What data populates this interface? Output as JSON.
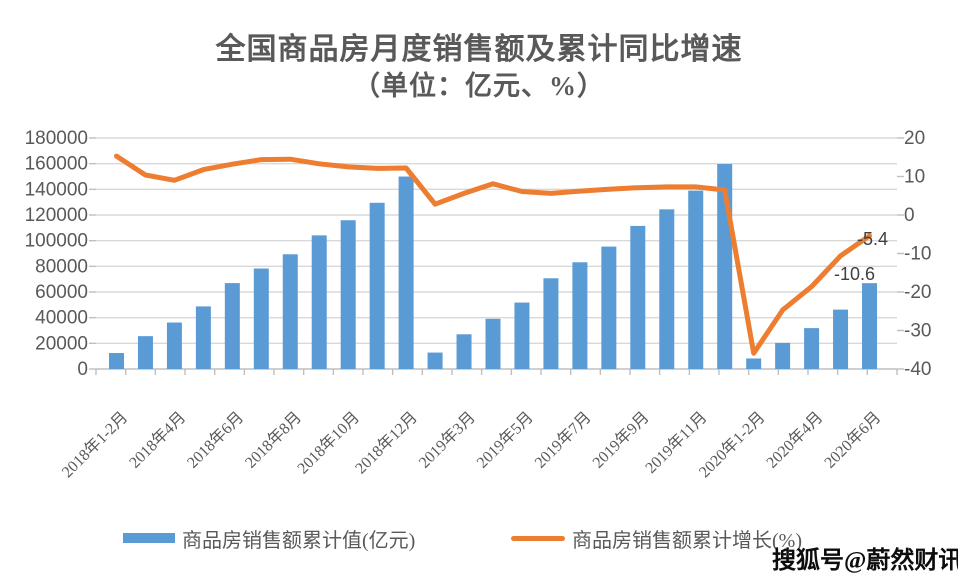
{
  "title": {
    "line1": "全国商品房月度销售额及累计同比增速",
    "line2": "（单位：亿元、%）"
  },
  "watermark": "搜狐号@蔚然财讯",
  "colors": {
    "bar": "#5B9BD5",
    "line": "#ED7D31",
    "grid": "#D9D9D9",
    "axis": "#BFBFBF",
    "axis_text": "#595959",
    "data_label_text": "#404040",
    "title_text": "#595959"
  },
  "legend": {
    "position": "bottom",
    "items": [
      {
        "label": "商品房销售额累计值(亿元)",
        "marker": "bar-swatch"
      },
      {
        "label": "商品房销售额累计增长(%)",
        "marker": "line-swatch"
      }
    ]
  },
  "chart_data": {
    "type": "combo",
    "title": "全国商品房月度销售额及累计同比增速（单位：亿元、%）",
    "grid": true,
    "legend_position": "bottom",
    "categories": [
      "2018年1-2月",
      "2018年3月",
      "2018年4月",
      "2018年5月",
      "2018年6月",
      "2018年7月",
      "2018年8月",
      "2018年9月",
      "2018年10月",
      "2018年11月",
      "2018年12月",
      "2019年1-2月",
      "2019年3月",
      "2019年4月",
      "2019年5月",
      "2019年6月",
      "2019年7月",
      "2019年8月",
      "2019年9月",
      "2019年10月",
      "2019年11月",
      "2019年12月",
      "2020年1-2月",
      "2020年3月",
      "2020年4月",
      "2020年5月",
      "2020年6月"
    ],
    "x_tick_labels": [
      "2018年1-2月",
      "2018年4月",
      "2018年6月",
      "2018年8月",
      "2018年10月",
      "2018年12月",
      "2019年3月",
      "2019年5月",
      "2019年7月",
      "2019年9月",
      "2019年11月",
      "2020年1-2月",
      "2020年4月",
      "2020年6月"
    ],
    "x_label_interval": 2,
    "series": [
      {
        "name": "商品房销售额累计值(亿元)",
        "type": "bar",
        "axis": "left",
        "color": "#5B9BD5",
        "values": [
          12454,
          25597,
          36222,
          48778,
          66945,
          78300,
          89396,
          104132,
          115914,
          129508,
          149973,
          12803,
          27039,
          39141,
          51773,
          70698,
          83162,
          95373,
          111491,
          124417,
          139006,
          159725,
          8203,
          20365,
          31863,
          46269,
          66895
        ]
      },
      {
        "name": "商品房销售额累计增长(%)",
        "type": "line",
        "axis": "right",
        "color": "#ED7D31",
        "values": [
          15.3,
          10.4,
          9.0,
          11.8,
          13.2,
          14.4,
          14.5,
          13.3,
          12.5,
          12.1,
          12.2,
          2.8,
          5.6,
          8.1,
          6.1,
          5.6,
          6.2,
          6.7,
          7.1,
          7.3,
          7.3,
          6.5,
          -35.9,
          -24.7,
          -18.6,
          -10.6,
          -5.4
        ]
      }
    ],
    "left_axis": {
      "min": 0,
      "max": 180000,
      "step": 20000,
      "tick_labels": [
        "0",
        "20000",
        "40000",
        "60000",
        "80000",
        "100000",
        "120000",
        "140000",
        "160000",
        "180000"
      ]
    },
    "right_axis": {
      "min": -40,
      "max": 20,
      "step": 10,
      "tick_labels": [
        "20",
        "10",
        "0",
        "-10",
        "-20",
        "-30",
        "-40"
      ]
    },
    "data_labels": [
      {
        "series": 1,
        "index": 25,
        "text": "-10.6"
      },
      {
        "series": 1,
        "index": 26,
        "text": "-5.4"
      }
    ]
  }
}
